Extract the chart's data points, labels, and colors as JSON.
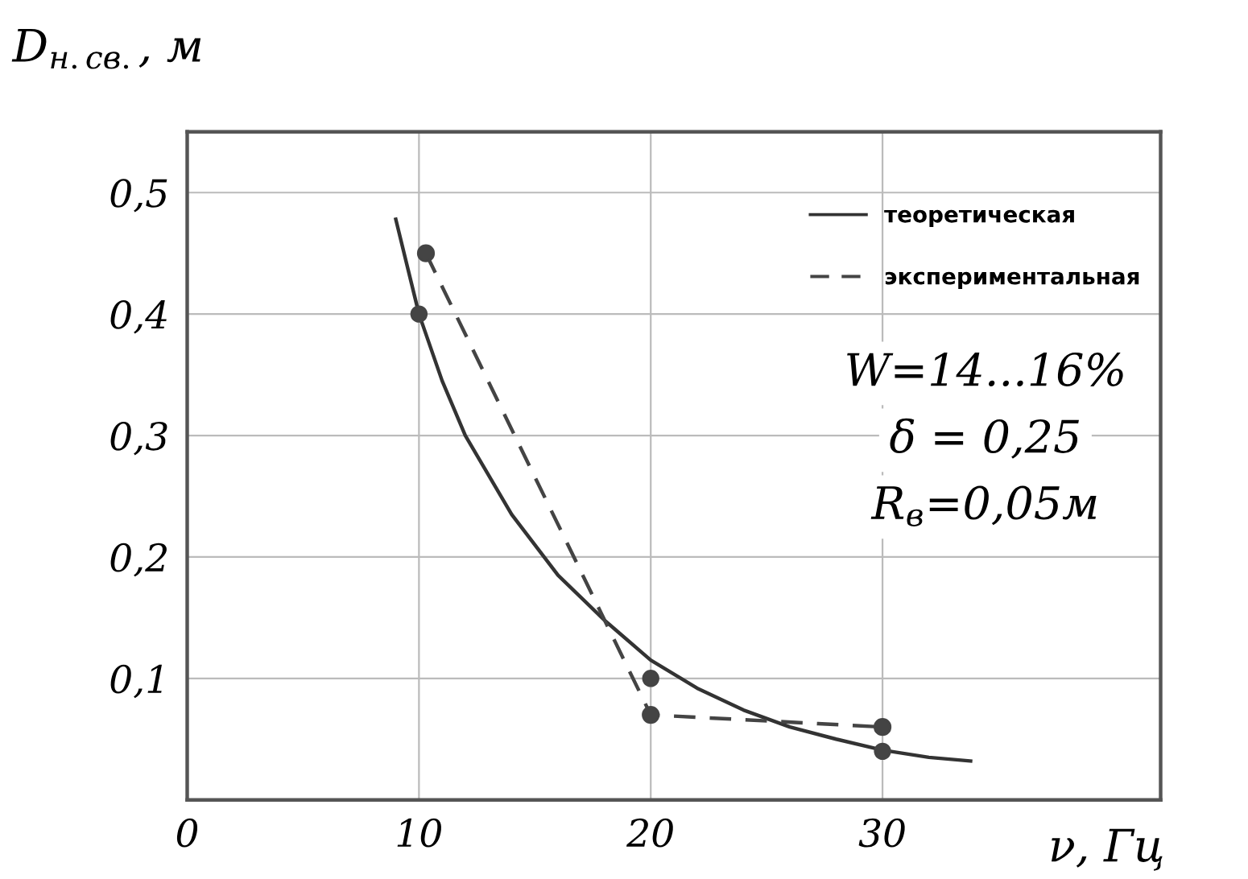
{
  "chart_data": {
    "type": "line",
    "xlabel": "ν, Гц",
    "ylabel": "D$_{н.св.}$, м",
    "xlim": [
      0,
      42
    ],
    "ylim": [
      0,
      0.55
    ],
    "xticks": [
      0,
      10,
      20,
      30
    ],
    "yticks": [
      {
        "value": 0.1,
        "label": "0,1"
      },
      {
        "value": 0.2,
        "label": "0,2"
      },
      {
        "value": 0.3,
        "label": "0,3"
      },
      {
        "value": 0.4,
        "label": "0,4"
      },
      {
        "value": 0.5,
        "label": "0,5"
      }
    ],
    "grid": true,
    "legend": "top right",
    "series": [
      {
        "name": "теоретическая",
        "color": "#333333",
        "line_style": "solid",
        "marker": "none",
        "x": [
          9,
          10,
          11,
          12,
          14,
          16,
          18,
          20,
          22,
          24,
          26,
          28,
          30,
          32,
          33.8
        ],
        "values": [
          0.478,
          0.4,
          0.345,
          0.3,
          0.235,
          0.185,
          0.148,
          0.115,
          0.092,
          0.074,
          0.06,
          0.05,
          0.041,
          0.035,
          0.032
        ]
      },
      {
        "name": "экспериментальная",
        "color": "#444444",
        "line_style": "dashed",
        "marker": "circle",
        "x": [
          10.3,
          20,
          30
        ],
        "values": [
          0.45,
          0.07,
          0.06
        ]
      },
      {
        "type": "scatter",
        "color": "#444444",
        "marker": "circle",
        "x": [
          10,
          20,
          30
        ],
        "values": [
          0.4,
          0.1,
          0.04
        ]
      }
    ],
    "annotations": [
      "W=14...16%",
      "δ = 0,25",
      "R$_{в}$=0,05м"
    ]
  }
}
